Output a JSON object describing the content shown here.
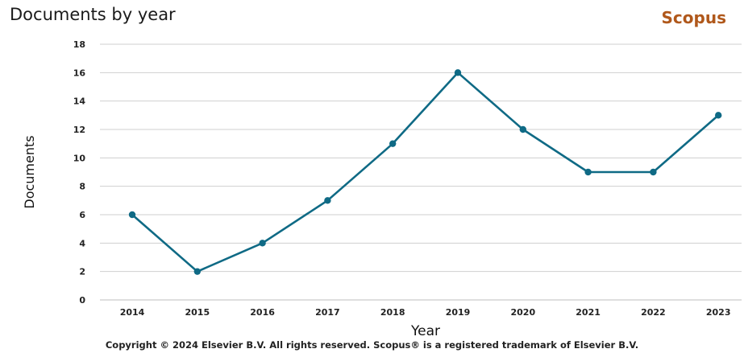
{
  "header": {
    "title": "Documents by year",
    "brand": "Scopus"
  },
  "footer": {
    "copyright": "Copyright © 2024 Elsevier B.V. All rights reserved. Scopus® is a registered trademark of Elsevier B.V."
  },
  "colors": {
    "line": "#0f6a85",
    "brand": "#b0581b",
    "grid": "#cfcfcf"
  },
  "chart_data": {
    "type": "line",
    "title": "Documents by year",
    "xlabel": "Year",
    "ylabel": "Documents",
    "x": [
      2014,
      2015,
      2016,
      2017,
      2018,
      2019,
      2020,
      2021,
      2022,
      2023
    ],
    "series": [
      {
        "values": [
          6,
          2,
          4,
          7,
          11,
          16,
          12,
          9,
          9,
          13
        ]
      }
    ],
    "ylim": [
      0,
      18
    ],
    "yticks": [
      0,
      2,
      4,
      6,
      8,
      10,
      12,
      14,
      16,
      18
    ],
    "grid": true,
    "legend": "none"
  }
}
